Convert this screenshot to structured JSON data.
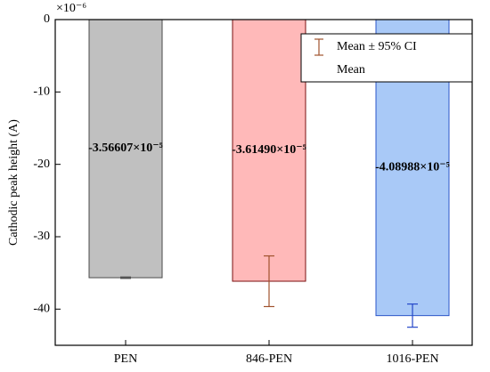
{
  "chart_data": {
    "type": "bar",
    "y_label": "Cathodic peak height (A)",
    "y_multiplier_label": "×10⁻⁶",
    "categories": [
      "PEN",
      "846-PEN",
      "1016-PEN"
    ],
    "series": [
      {
        "name": "Mean",
        "values": [
          -35.6607,
          -36.149,
          -40.8988
        ],
        "value_labels": [
          "-3.56607×10⁻⁵",
          "-3.61490×10⁻⁵",
          "-4.08988×10⁻⁵"
        ],
        "colors": [
          "#c0c0c0",
          "#ffb9b9",
          "#a9c9f7"
        ],
        "edge_colors": [
          "#4a4a4a",
          "#7a1010",
          "#2c55c8"
        ]
      }
    ],
    "error_series": {
      "name": "Mean ± 95% CI",
      "errors": [
        0.1,
        3.5,
        1.6
      ],
      "colors": [
        "#555555",
        "#a0522d",
        "#2346c8"
      ]
    },
    "ylim": [
      -45,
      0
    ],
    "yticks": [
      0,
      -10,
      -20,
      -30,
      -40
    ]
  }
}
